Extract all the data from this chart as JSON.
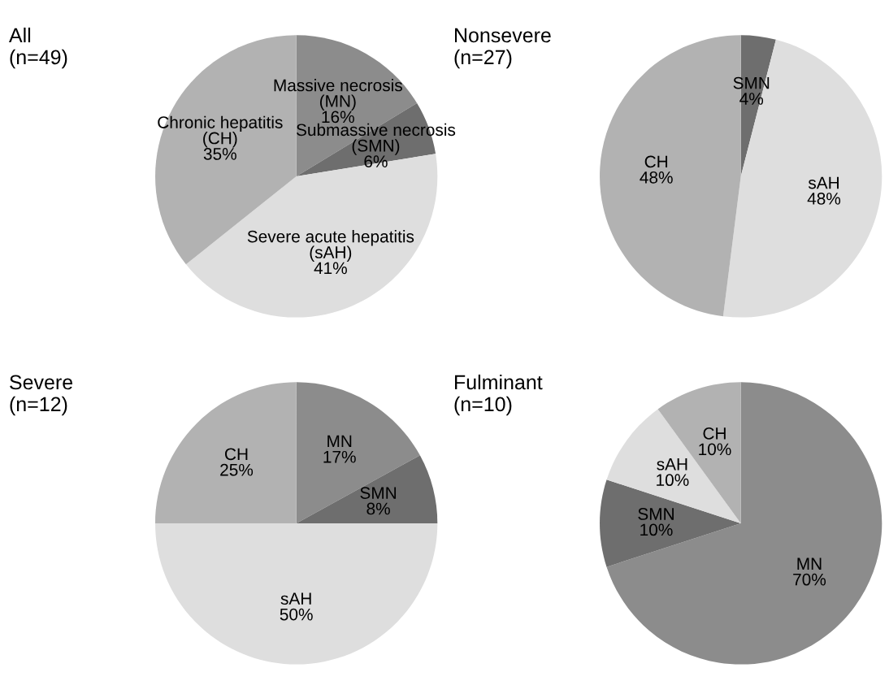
{
  "chart_data": [
    {
      "type": "pie",
      "title": "All\n(n=49)",
      "categories": [
        "Massive necrosis\n(MN)",
        "Submassive necrosis\n(SMN)",
        "Severe acute hepatitis\n(sAH)",
        "Chronic hepatitis\n(CH)"
      ],
      "values": [
        16,
        6,
        41,
        35
      ],
      "value_labels": [
        "16%",
        "6%",
        "41%",
        "35%"
      ],
      "colors": [
        "#8c8c8c",
        "#6e6e6e",
        "#dedede",
        "#b2b2b2"
      ]
    },
    {
      "type": "pie",
      "title": "Nonsevere\n(n=27)",
      "categories": [
        "SMN",
        "sAH",
        "CH"
      ],
      "values": [
        4,
        48,
        48
      ],
      "value_labels": [
        "4%",
        "48%",
        "48%"
      ],
      "colors": [
        "#6e6e6e",
        "#dedede",
        "#b2b2b2"
      ]
    },
    {
      "type": "pie",
      "title": "Severe\n(n=12)",
      "categories": [
        "MN",
        "SMN",
        "sAH",
        "CH"
      ],
      "values": [
        17,
        8,
        50,
        25
      ],
      "value_labels": [
        "17%",
        "8%",
        "50%",
        "25%"
      ],
      "colors": [
        "#8c8c8c",
        "#6e6e6e",
        "#dedede",
        "#b2b2b2"
      ]
    },
    {
      "type": "pie",
      "title": "Fulminant\n(n=10)",
      "categories": [
        "MN",
        "SMN",
        "sAH",
        "CH"
      ],
      "values": [
        70,
        10,
        10,
        10
      ],
      "value_labels": [
        "70%",
        "10%",
        "10%",
        "10%"
      ],
      "colors": [
        "#8c8c8c",
        "#6e6e6e",
        "#dedede",
        "#b2b2b2"
      ]
    }
  ]
}
